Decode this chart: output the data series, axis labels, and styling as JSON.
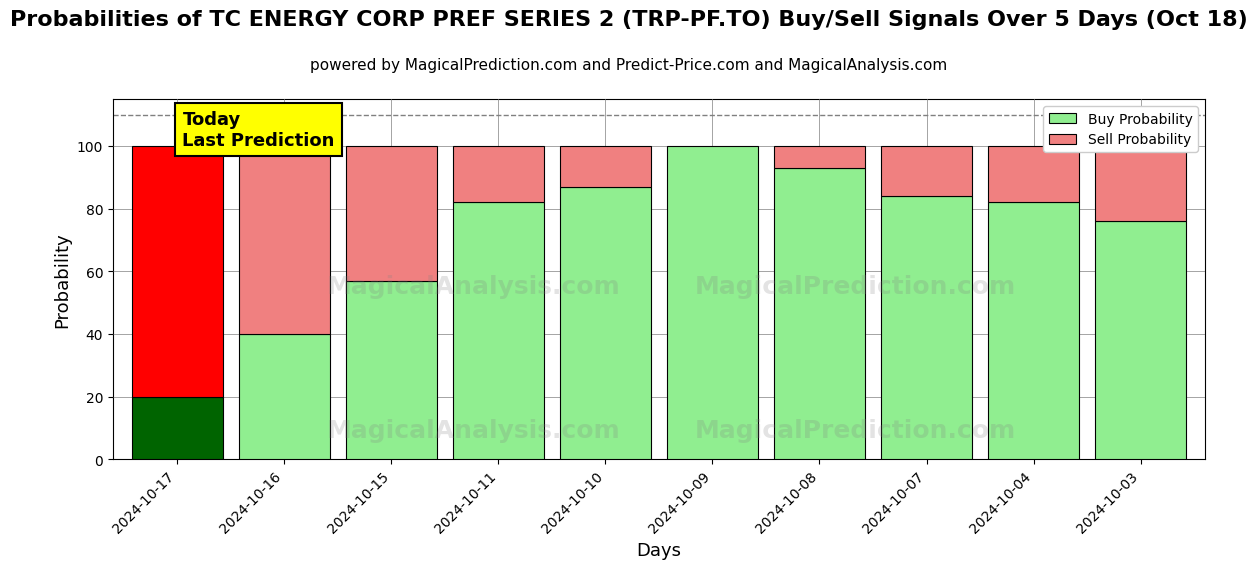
{
  "title": "Probabilities of TC ENERGY CORP PREF SERIES 2 (TRP-PF.TO) Buy/Sell Signals Over 5 Days (Oct 18)",
  "subtitle": "powered by MagicalPrediction.com and Predict-Price.com and MagicalAnalysis.com",
  "xlabel": "Days",
  "ylabel": "Probability",
  "dates": [
    "2024-10-17",
    "2024-10-16",
    "2024-10-15",
    "2024-10-11",
    "2024-10-10",
    "2024-10-09",
    "2024-10-08",
    "2024-10-07",
    "2024-10-04",
    "2024-10-03"
  ],
  "buy_values": [
    20,
    40,
    57,
    82,
    87,
    100,
    93,
    84,
    82,
    76
  ],
  "sell_values": [
    80,
    60,
    43,
    18,
    13,
    0,
    7,
    16,
    18,
    24
  ],
  "buy_colors": [
    "#006400",
    "#90EE90",
    "#90EE90",
    "#90EE90",
    "#90EE90",
    "#90EE90",
    "#90EE90",
    "#90EE90",
    "#90EE90",
    "#90EE90"
  ],
  "sell_colors": [
    "#FF0000",
    "#F08080",
    "#F08080",
    "#F08080",
    "#F08080",
    "#F08080",
    "#F08080",
    "#F08080",
    "#F08080",
    "#F08080"
  ],
  "today_label_text": "Today\nLast Prediction",
  "today_label_bg": "#FFFF00",
  "legend_buy_color": "#90EE90",
  "legend_sell_color": "#F08080",
  "dashed_line_y": 110,
  "ylim": [
    0,
    115
  ],
  "title_fontsize": 16,
  "subtitle_fontsize": 11,
  "axis_label_fontsize": 13,
  "tick_fontsize": 10,
  "bar_width": 0.85
}
